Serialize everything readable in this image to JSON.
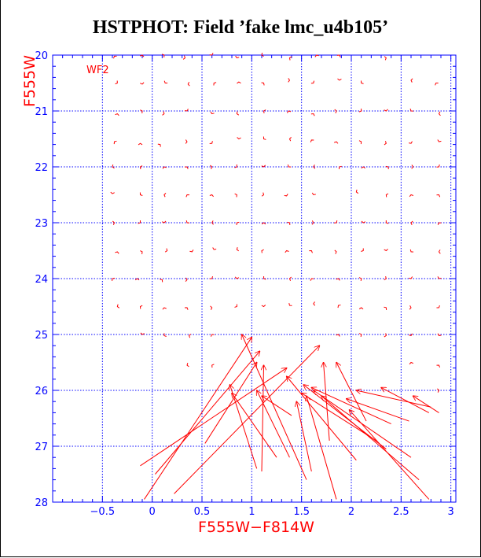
{
  "title": "HSTPHOT: Field ’fake lmc_u4b105’",
  "chart_data": {
    "type": "scatter",
    "subtype": "vector-field",
    "title": "HSTPHOT: Field ’fake lmc_u4b105’",
    "panel_label": "WF2",
    "xlabel": "F555W−F814W",
    "ylabel": "F555W",
    "xlim": [
      -1.0,
      3.05
    ],
    "ylim": [
      28,
      20
    ],
    "y_inverted": true,
    "xticks": [
      "−0.5",
      "0",
      "0.5",
      "1",
      "1.5",
      "2",
      "2.5",
      "3"
    ],
    "xtick_values": [
      -0.5,
      0,
      0.5,
      1,
      1.5,
      2,
      2.5,
      3
    ],
    "yticks": [
      "20",
      "21",
      "22",
      "23",
      "24",
      "25",
      "26",
      "27",
      "28"
    ],
    "ytick_values": [
      20,
      21,
      22,
      23,
      24,
      25,
      26,
      27,
      28
    ],
    "grid": true,
    "colors": {
      "axes": "#0000ff",
      "grid": "#0000ff",
      "vectors": "#ff0000",
      "title": "#000000"
    },
    "x_columns": [
      -0.5,
      0,
      0.5,
      1,
      1.5,
      2,
      2.5,
      2.9
    ],
    "small_markers": [
      {
        "x": -0.38,
        "y": 20.02
      },
      {
        "x": -0.1,
        "y": 20.0
      },
      {
        "x": 0.12,
        "y": 20.0
      },
      {
        "x": 0.33,
        "y": 20.05
      },
      {
        "x": 0.6,
        "y": 20.0
      },
      {
        "x": 0.85,
        "y": 20.05
      },
      {
        "x": 1.1,
        "y": 20.0
      },
      {
        "x": 1.38,
        "y": 20.05
      },
      {
        "x": 1.65,
        "y": 20.0
      },
      {
        "x": 1.88,
        "y": 20.0
      },
      {
        "x": 2.35,
        "y": 20.05
      },
      {
        "x": -0.35,
        "y": 20.5
      },
      {
        "x": -0.1,
        "y": 20.52
      },
      {
        "x": 0.13,
        "y": 20.5
      },
      {
        "x": 0.36,
        "y": 20.52
      },
      {
        "x": 0.62,
        "y": 20.5
      },
      {
        "x": 0.87,
        "y": 20.48
      },
      {
        "x": 1.12,
        "y": 20.5
      },
      {
        "x": 1.38,
        "y": 20.45
      },
      {
        "x": 1.62,
        "y": 20.5
      },
      {
        "x": 1.88,
        "y": 20.45
      },
      {
        "x": 2.1,
        "y": 20.5
      },
      {
        "x": 2.6,
        "y": 20.45
      },
      {
        "x": 2.85,
        "y": 20.5
      },
      {
        "x": -0.35,
        "y": 21.05
      },
      {
        "x": -0.1,
        "y": 21.0
      },
      {
        "x": 0.12,
        "y": 21.05
      },
      {
        "x": 0.35,
        "y": 21.0
      },
      {
        "x": 0.6,
        "y": 21.05
      },
      {
        "x": 0.85,
        "y": 21.05
      },
      {
        "x": 1.12,
        "y": 21.0
      },
      {
        "x": 1.37,
        "y": 21.0
      },
      {
        "x": 1.62,
        "y": 21.05
      },
      {
        "x": 1.85,
        "y": 21.0
      },
      {
        "x": 2.1,
        "y": 21.0
      },
      {
        "x": 2.35,
        "y": 21.0
      },
      {
        "x": 2.6,
        "y": 21.0
      },
      {
        "x": 2.88,
        "y": 21.05
      },
      {
        "x": -0.38,
        "y": 21.55
      },
      {
        "x": -0.12,
        "y": 21.58
      },
      {
        "x": 0.08,
        "y": 21.6
      },
      {
        "x": 0.35,
        "y": 21.55
      },
      {
        "x": 0.6,
        "y": 21.58
      },
      {
        "x": 0.87,
        "y": 21.5
      },
      {
        "x": 1.12,
        "y": 21.5
      },
      {
        "x": 1.38,
        "y": 21.5
      },
      {
        "x": 1.6,
        "y": 21.52
      },
      {
        "x": 1.85,
        "y": 21.55
      },
      {
        "x": 2.1,
        "y": 21.55
      },
      {
        "x": 2.35,
        "y": 21.58
      },
      {
        "x": 2.6,
        "y": 21.58
      },
      {
        "x": 2.88,
        "y": 21.55
      },
      {
        "x": -0.4,
        "y": 22.0
      },
      {
        "x": -0.12,
        "y": 22.0
      },
      {
        "x": 0.12,
        "y": 22.0
      },
      {
        "x": 0.35,
        "y": 22.0
      },
      {
        "x": 0.6,
        "y": 22.0
      },
      {
        "x": 0.85,
        "y": 22.0
      },
      {
        "x": 1.12,
        "y": 22.0
      },
      {
        "x": 1.37,
        "y": 22.0
      },
      {
        "x": 1.62,
        "y": 22.0
      },
      {
        "x": 1.88,
        "y": 22.0
      },
      {
        "x": 2.12,
        "y": 22.0
      },
      {
        "x": 2.37,
        "y": 22.0
      },
      {
        "x": 2.62,
        "y": 22.0
      },
      {
        "x": 2.88,
        "y": 22.0
      },
      {
        "x": -0.4,
        "y": 22.48
      },
      {
        "x": -0.12,
        "y": 22.5
      },
      {
        "x": 0.12,
        "y": 22.5
      },
      {
        "x": 0.35,
        "y": 22.5
      },
      {
        "x": 0.6,
        "y": 22.5
      },
      {
        "x": 0.85,
        "y": 22.5
      },
      {
        "x": 1.12,
        "y": 22.5
      },
      {
        "x": 1.35,
        "y": 22.52
      },
      {
        "x": 1.62,
        "y": 22.5
      },
      {
        "x": 2.05,
        "y": 22.45
      },
      {
        "x": 2.35,
        "y": 22.5
      },
      {
        "x": 2.6,
        "y": 22.5
      },
      {
        "x": 2.88,
        "y": 22.5
      },
      {
        "x": -0.38,
        "y": 23.0
      },
      {
        "x": -0.12,
        "y": 23.0
      },
      {
        "x": 0.12,
        "y": 23.0
      },
      {
        "x": 0.35,
        "y": 23.0
      },
      {
        "x": 0.6,
        "y": 23.0
      },
      {
        "x": 0.85,
        "y": 23.0
      },
      {
        "x": 1.12,
        "y": 23.0
      },
      {
        "x": 1.38,
        "y": 23.0
      },
      {
        "x": 1.62,
        "y": 23.0
      },
      {
        "x": 1.85,
        "y": 23.0
      },
      {
        "x": 2.12,
        "y": 23.0
      },
      {
        "x": 2.35,
        "y": 23.0
      },
      {
        "x": 2.6,
        "y": 23.0
      },
      {
        "x": 2.88,
        "y": 23.0
      },
      {
        "x": -0.35,
        "y": 23.52
      },
      {
        "x": -0.1,
        "y": 23.52
      },
      {
        "x": 0.15,
        "y": 23.5
      },
      {
        "x": 0.4,
        "y": 23.52
      },
      {
        "x": 0.62,
        "y": 23.48
      },
      {
        "x": 0.85,
        "y": 23.48
      },
      {
        "x": 1.1,
        "y": 23.5
      },
      {
        "x": 1.35,
        "y": 23.5
      },
      {
        "x": 1.6,
        "y": 23.5
      },
      {
        "x": 1.85,
        "y": 23.52
      },
      {
        "x": 2.12,
        "y": 23.5
      },
      {
        "x": 2.35,
        "y": 23.5
      },
      {
        "x": 2.6,
        "y": 23.52
      },
      {
        "x": 2.88,
        "y": 23.52
      },
      {
        "x": -0.4,
        "y": 24.0
      },
      {
        "x": -0.15,
        "y": 24.0
      },
      {
        "x": 0.1,
        "y": 24.02
      },
      {
        "x": 0.35,
        "y": 24.02
      },
      {
        "x": 0.6,
        "y": 24.0
      },
      {
        "x": 0.85,
        "y": 24.0
      },
      {
        "x": 1.12,
        "y": 24.0
      },
      {
        "x": 1.38,
        "y": 24.0
      },
      {
        "x": 1.6,
        "y": 24.0
      },
      {
        "x": 1.87,
        "y": 24.0
      },
      {
        "x": 2.1,
        "y": 24.0
      },
      {
        "x": 2.35,
        "y": 24.0
      },
      {
        "x": 2.6,
        "y": 24.0
      },
      {
        "x": 2.88,
        "y": 24.0
      },
      {
        "x": -0.35,
        "y": 24.5
      },
      {
        "x": -0.12,
        "y": 24.5
      },
      {
        "x": 0.12,
        "y": 24.52
      },
      {
        "x": 0.35,
        "y": 24.52
      },
      {
        "x": 0.6,
        "y": 24.52
      },
      {
        "x": 0.85,
        "y": 24.5
      },
      {
        "x": 1.12,
        "y": 24.5
      },
      {
        "x": 1.38,
        "y": 24.48
      },
      {
        "x": 1.62,
        "y": 24.45
      },
      {
        "x": 1.87,
        "y": 24.48
      },
      {
        "x": 2.1,
        "y": 24.52
      },
      {
        "x": 2.35,
        "y": 24.52
      },
      {
        "x": 2.6,
        "y": 24.52
      },
      {
        "x": 2.88,
        "y": 24.52
      },
      {
        "x": -0.1,
        "y": 25.0
      },
      {
        "x": 0.12,
        "y": 25.02
      },
      {
        "x": 0.37,
        "y": 25.02
      },
      {
        "x": 0.6,
        "y": 25.0
      },
      {
        "x": 1.87,
        "y": 25.0
      },
      {
        "x": 2.1,
        "y": 25.0
      },
      {
        "x": 2.35,
        "y": 25.02
      },
      {
        "x": 2.6,
        "y": 25.02
      },
      {
        "x": 2.88,
        "y": 25.02
      },
      {
        "x": 0.35,
        "y": 25.55
      },
      {
        "x": 0.6,
        "y": 25.55
      },
      {
        "x": 2.6,
        "y": 25.5
      },
      {
        "x": 2.88,
        "y": 25.55
      },
      {
        "x": 2.88,
        "y": 26.0
      }
    ],
    "arrows": [
      {
        "x0": -0.12,
        "y0": 27.35,
        "x1": 1.35,
        "y1": 25.6
      },
      {
        "x0": 0.03,
        "y0": 27.5,
        "x1": 1.08,
        "y1": 25.3
      },
      {
        "x0": -0.08,
        "y0": 27.95,
        "x1": 1.0,
        "y1": 25.05
      },
      {
        "x0": 0.22,
        "y0": 27.85,
        "x1": 1.68,
        "y1": 25.2
      },
      {
        "x0": 0.53,
        "y0": 26.95,
        "x1": 1.05,
        "y1": 25.5
      },
      {
        "x0": 1.1,
        "y0": 27.45,
        "x1": 1.12,
        "y1": 25.55
      },
      {
        "x0": 1.05,
        "y0": 27.4,
        "x1": 0.78,
        "y1": 25.9
      },
      {
        "x0": 1.25,
        "y0": 27.2,
        "x1": 0.8,
        "y1": 26.05
      },
      {
        "x0": 1.38,
        "y0": 27.2,
        "x1": 1.05,
        "y1": 26.0
      },
      {
        "x0": 1.4,
        "y0": 26.45,
        "x1": 1.1,
        "y1": 26.1
      },
      {
        "x0": 1.55,
        "y0": 27.6,
        "x1": 0.9,
        "y1": 25.0
      },
      {
        "x0": 1.6,
        "y0": 27.45,
        "x1": 1.45,
        "y1": 26.2
      },
      {
        "x0": 1.85,
        "y0": 27.95,
        "x1": 1.55,
        "y1": 26.1
      },
      {
        "x0": 1.78,
        "y0": 26.9,
        "x1": 1.72,
        "y1": 25.5
      },
      {
        "x0": 2.05,
        "y0": 27.25,
        "x1": 1.35,
        "y1": 25.75
      },
      {
        "x0": 2.25,
        "y0": 26.9,
        "x1": 1.5,
        "y1": 26.05
      },
      {
        "x0": 2.15,
        "y0": 26.55,
        "x1": 1.85,
        "y1": 25.5
      },
      {
        "x0": 2.4,
        "y0": 26.6,
        "x1": 1.6,
        "y1": 25.95
      },
      {
        "x0": 2.35,
        "y0": 27.05,
        "x1": 1.52,
        "y1": 25.9
      },
      {
        "x0": 2.6,
        "y0": 27.2,
        "x1": 1.62,
        "y1": 26.0
      },
      {
        "x0": 2.58,
        "y0": 26.55,
        "x1": 1.95,
        "y1": 26.15
      },
      {
        "x0": 2.68,
        "y0": 27.6,
        "x1": 1.7,
        "y1": 26.1
      },
      {
        "x0": 2.78,
        "y0": 27.95,
        "x1": 1.98,
        "y1": 26.35
      },
      {
        "x0": 2.8,
        "y0": 26.3,
        "x1": 2.05,
        "y1": 26.0
      },
      {
        "x0": 2.78,
        "y0": 26.4,
        "x1": 2.3,
        "y1": 25.95
      },
      {
        "x0": 2.88,
        "y0": 26.4,
        "x1": 2.62,
        "y1": 26.1
      }
    ]
  }
}
